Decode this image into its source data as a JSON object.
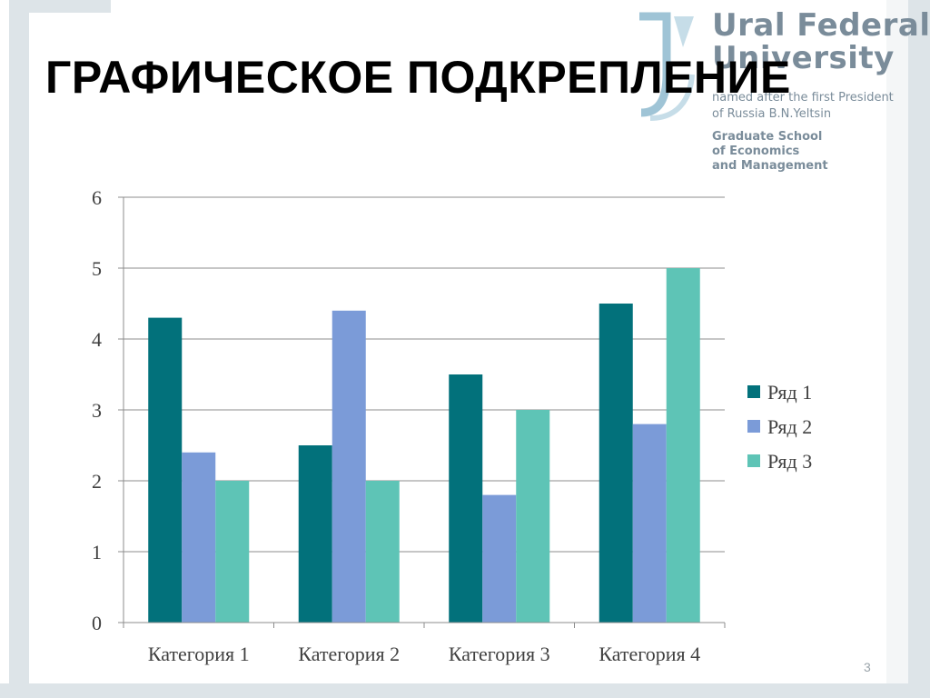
{
  "slide": {
    "title": "ГРАФИЧЕСКОЕ ПОДКРЕПЛЕНИЕ",
    "page_number": "3"
  },
  "logo": {
    "line1": "Ural Federal",
    "line2": "University",
    "line3": "named after the first President",
    "line4": "of Russia B.N.Yeltsin",
    "line5": "Graduate School",
    "line6": "of Economics",
    "line7": "and Management"
  },
  "colors": {
    "frame": "#dde4e8",
    "logo": "#7a8c9a",
    "logo_accent": "#9fc4d6",
    "grid": "#8c8c8c"
  },
  "chart_data": {
    "type": "bar",
    "categories": [
      "Категория 1",
      "Категория 2",
      "Категория 3",
      "Категория 4"
    ],
    "series": [
      {
        "name": "Ряд 1",
        "color": "#02717b",
        "values": [
          4.3,
          2.5,
          3.5,
          4.5
        ]
      },
      {
        "name": "Ряд 2",
        "color": "#7b9bd8",
        "values": [
          2.4,
          4.4,
          1.8,
          2.8
        ]
      },
      {
        "name": "Ряд 3",
        "color": "#5ec4b6",
        "values": [
          2,
          2,
          3,
          5
        ]
      }
    ],
    "ylim": [
      0,
      6
    ],
    "yticks": [
      "0",
      "1",
      "2",
      "3",
      "4",
      "5",
      "6"
    ],
    "grid": true,
    "legend_position": "right"
  }
}
